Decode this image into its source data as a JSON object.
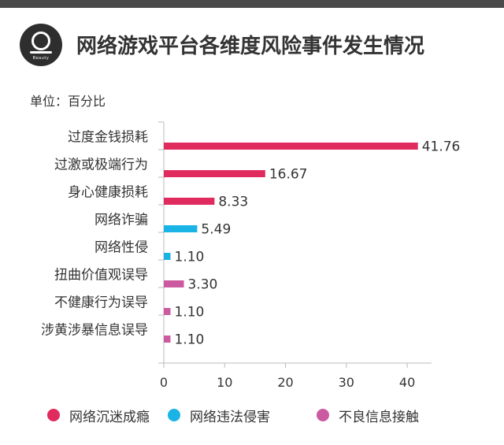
{
  "header": {
    "logo_text": "Beauty",
    "title": "网络游戏平台各维度风险事件发生情况",
    "unit": "单位：百分比"
  },
  "colors": {
    "网络沉迷成瘾": "#e02b5f",
    "网络违法侵害": "#1ab3e6",
    "不良信息接触": "#cc5aa0"
  },
  "chart_data": {
    "type": "bar",
    "orientation": "horizontal",
    "title": "网络游戏平台各维度风险事件发生情况",
    "unit_label": "单位：百分比",
    "categories": [
      "过度金钱损耗",
      "过激或极端行为",
      "身心健康损耗",
      "网络诈骗",
      "网络性侵",
      "扭曲价值观误导",
      "不健康行为误导",
      "涉黄涉暴信息误导"
    ],
    "values": [
      41.76,
      16.67,
      8.33,
      5.49,
      1.1,
      3.3,
      1.1,
      1.1
    ],
    "value_labels": [
      "41.76",
      "16.67",
      "8.33",
      "5.49",
      "1.10",
      "3.30",
      "1.10",
      "1.10"
    ],
    "groups": [
      "网络沉迷成瘾",
      "网络沉迷成瘾",
      "网络沉迷成瘾",
      "网络违法侵害",
      "网络违法侵害",
      "不良信息接触",
      "不良信息接触",
      "不良信息接触"
    ],
    "xlim": [
      0,
      44
    ],
    "xticks": [
      0,
      10,
      20,
      30,
      40
    ],
    "legend": [
      "网络沉迷成瘾",
      "网络违法侵害",
      "不良信息接触"
    ],
    "legend_position": "bottom",
    "grid": false
  }
}
